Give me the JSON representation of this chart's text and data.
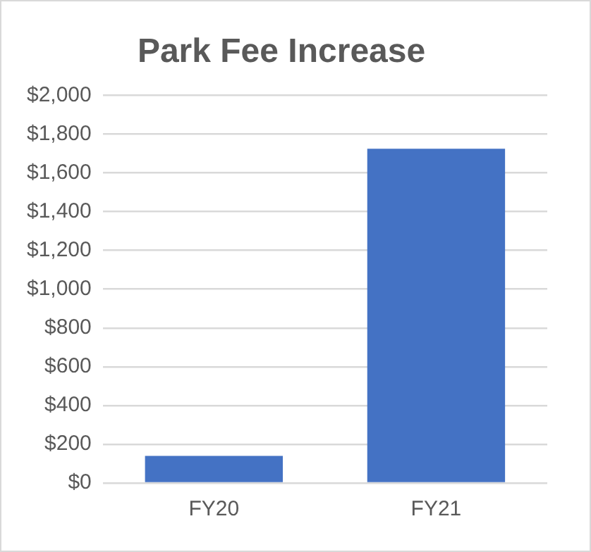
{
  "chart_data": {
    "type": "bar",
    "title": "Park Fee Increase",
    "categories": [
      "FY20",
      "FY21"
    ],
    "values": [
      140,
      1725
    ],
    "color": "#4472c4",
    "ylim": [
      0,
      2000
    ],
    "yticks": [
      {
        "value": 0,
        "label": "$0"
      },
      {
        "value": 200,
        "label": "$200"
      },
      {
        "value": 400,
        "label": "$400"
      },
      {
        "value": 600,
        "label": "$600"
      },
      {
        "value": 800,
        "label": "$800"
      },
      {
        "value": 1000,
        "label": "$1,000"
      },
      {
        "value": 1200,
        "label": "$1,200"
      },
      {
        "value": 1400,
        "label": "$1,400"
      },
      {
        "value": 1600,
        "label": "$1,600"
      },
      {
        "value": 1800,
        "label": "$1,800"
      },
      {
        "value": 2000,
        "label": "$2,000"
      }
    ],
    "grid": "y",
    "legend": false
  }
}
